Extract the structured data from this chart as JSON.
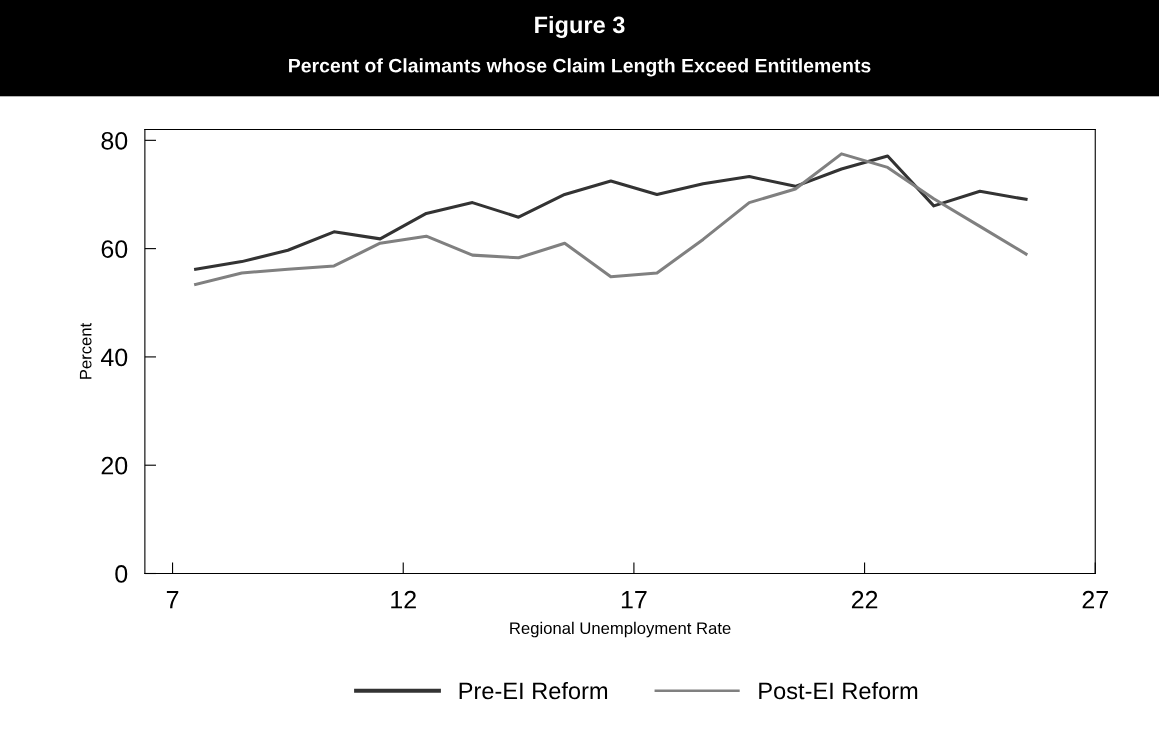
{
  "chart_data": {
    "type": "line",
    "title": "Figure 3",
    "subtitle": "Percent of Claimants whose Claim Length Exceed Entitlements",
    "xlabel": "Regional Unemployment Rate",
    "ylabel": "Percent",
    "x": [
      7.5,
      8.5,
      9.5,
      10.5,
      11.5,
      12.5,
      13.5,
      14.5,
      15.5,
      16.5,
      17.5,
      18.5,
      19.5,
      20.5,
      21.5,
      22.5,
      23.5,
      24.5,
      25.5
    ],
    "series": [
      {
        "name": "Pre-EI Reform",
        "color": "#333333",
        "values": [
          56.2,
          57.6,
          59.7,
          63.1,
          61.8,
          66.5,
          68.5,
          65.8,
          70.0,
          72.5,
          70.0,
          72.0,
          73.3,
          71.5,
          74.7,
          77.1,
          67.9,
          70.6,
          69.1
        ]
      },
      {
        "name": "Post-EI Reform",
        "color": "#808080",
        "values": [
          53.4,
          55.5,
          56.2,
          56.8,
          61.0,
          62.3,
          58.8,
          58.3,
          61.0,
          54.8,
          55.5,
          61.7,
          68.5,
          71.0,
          77.5,
          75.0,
          69.2,
          64.1,
          59.0
        ]
      }
    ],
    "xlim": [
      6.4,
      27
    ],
    "xticks": [
      7,
      12,
      17,
      22,
      27
    ],
    "ylim": [
      0,
      82
    ],
    "yticks": [
      0,
      20,
      40,
      60,
      80
    ],
    "grid": false,
    "legend": "bottom",
    "line_style": "solid",
    "marker": "none"
  }
}
